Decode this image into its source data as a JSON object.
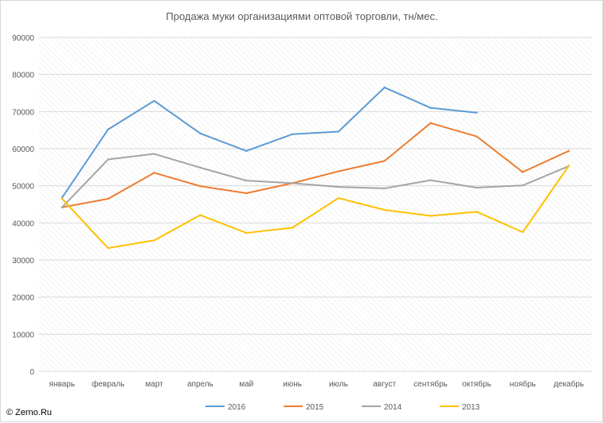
{
  "chart_data": {
    "type": "line",
    "title": "Продажа муки организациями оптовой торговли, тн/мес.",
    "categories": [
      "январь",
      "февраль",
      "март",
      "апрель",
      "май",
      "июнь",
      "июль",
      "август",
      "сентябрь",
      "октябрь",
      "ноябрь",
      "декабрь"
    ],
    "y_ticks": [
      "0",
      "10000",
      "20000",
      "30000",
      "40000",
      "50000",
      "60000",
      "70000",
      "80000",
      "90000"
    ],
    "ylim": [
      0,
      90000
    ],
    "grid": true,
    "legend_position": "bottom",
    "series": [
      {
        "name": "2016",
        "color": "#5b9bd5",
        "values": [
          46800,
          65200,
          72900,
          64100,
          59400,
          63900,
          64600,
          76500,
          71000,
          69700,
          null,
          null
        ]
      },
      {
        "name": "2015",
        "color": "#ed7d31",
        "values": [
          44200,
          46500,
          53500,
          49900,
          48000,
          50700,
          53900,
          56700,
          66900,
          63300,
          53700,
          59400
        ]
      },
      {
        "name": "2014",
        "color": "#a5a5a5",
        "values": [
          44200,
          57100,
          58600,
          54900,
          51400,
          50700,
          49700,
          49300,
          51500,
          49500,
          50100,
          55300
        ]
      },
      {
        "name": "2013",
        "color": "#ffc000",
        "values": [
          46500,
          33200,
          35300,
          42100,
          37300,
          38700,
          46700,
          43500,
          41900,
          43000,
          37500,
          55400
        ]
      }
    ]
  },
  "footer": {
    "copyright": "© Zerno.Ru"
  }
}
